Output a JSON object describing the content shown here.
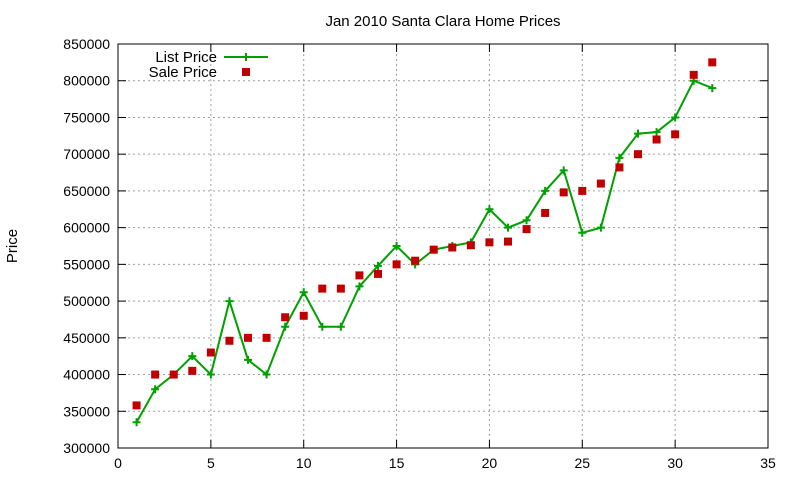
{
  "chart_data": {
    "type": "line",
    "title": "Jan 2010 Santa Clara Home Prices",
    "xlabel": "",
    "ylabel": "Price",
    "xlim": [
      0,
      35
    ],
    "ylim": [
      300000,
      850000
    ],
    "xticks": [
      0,
      5,
      10,
      15,
      20,
      25,
      30,
      35
    ],
    "yticks": [
      300000,
      350000,
      400000,
      450000,
      500000,
      550000,
      600000,
      650000,
      700000,
      750000,
      800000,
      850000
    ],
    "grid": true,
    "legend_position": "top-left",
    "x": [
      1,
      2,
      3,
      4,
      5,
      6,
      7,
      8,
      9,
      10,
      11,
      12,
      13,
      14,
      15,
      16,
      17,
      18,
      19,
      20,
      21,
      22,
      23,
      24,
      25,
      26,
      27,
      28,
      29,
      30,
      31,
      32
    ],
    "series": [
      {
        "name": "List Price",
        "style": "line-with-plus-markers",
        "color": "#00a000",
        "values": [
          335000,
          380000,
          400000,
          425000,
          400000,
          500000,
          420000,
          400000,
          465000,
          512000,
          465000,
          465000,
          520000,
          548000,
          575000,
          550000,
          570000,
          575000,
          580000,
          625000,
          600000,
          610000,
          650000,
          678000,
          593000,
          600000,
          695000,
          728000,
          730000,
          750000,
          800000,
          790000
        ]
      },
      {
        "name": "Sale Price",
        "style": "square-markers",
        "color": "#c00000",
        "values": [
          358000,
          400000,
          400000,
          405000,
          430000,
          446000,
          450000,
          450000,
          478000,
          480000,
          517000,
          517000,
          535000,
          537000,
          550000,
          555000,
          570000,
          573000,
          576000,
          580000,
          581000,
          598000,
          620000,
          648000,
          650000,
          660000,
          682000,
          700000,
          720000,
          727000,
          808000,
          825000
        ]
      }
    ]
  }
}
